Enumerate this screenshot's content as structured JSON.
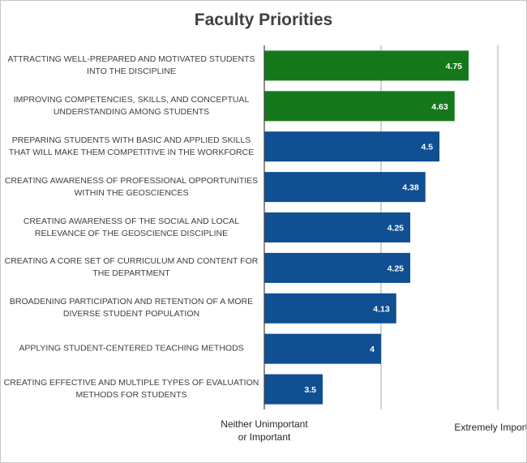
{
  "chart_data": {
    "type": "hbar",
    "title": "Faculty Priorities",
    "categories": [
      "ATTRACTING WELL-PREPARED AND MOTIVATED STUDENTS INTO THE DISCIPLINE",
      "IMPROVING COMPETENCIES, SKILLS, AND CONCEPTUAL UNDERSTANDING AMONG STUDENTS",
      "PREPARING STUDENTS WITH BASIC AND APPLIED SKILLS THAT WILL MAKE THEM COMPETITIVE IN THE WORKFORCE",
      "CREATING AWARENESS OF PROFESSIONAL OPPORTUNITIES WITHIN THE GEOSCIENCES",
      "CREATING AWARENESS OF THE SOCIAL AND LOCAL RELEVANCE OF THE GEOSCIENCE DISCIPLINE",
      "CREATING A CORE SET OF CURRICULUM AND CONTENT FOR THE DEPARTMENT",
      "BROADENING PARTICIPATION AND RETENTION OF A MORE DIVERSE STUDENT POPULATION",
      "APPLYING STUDENT-CENTERED TEACHING METHODS",
      "CREATING EFFECTIVE AND MULTIPLE TYPES OF EVALUATION METHODS FOR STUDENTS"
    ],
    "values": [
      4.75,
      4.63,
      4.5,
      4.38,
      4.25,
      4.25,
      4.13,
      4,
      3.5
    ],
    "colors": [
      "#15791b",
      "#15791b",
      "#0f4f92",
      "#0f4f92",
      "#0f4f92",
      "#0f4f92",
      "#0f4f92",
      "#0f4f92",
      "#0f4f92"
    ],
    "xlim": [
      3,
      5
    ],
    "xticks": [
      {
        "value": 3,
        "label": "Neither Unimportant or Important"
      },
      {
        "value": 4,
        "label": null
      },
      {
        "value": 5,
        "label": "Extremely Important"
      }
    ],
    "grid": true
  }
}
